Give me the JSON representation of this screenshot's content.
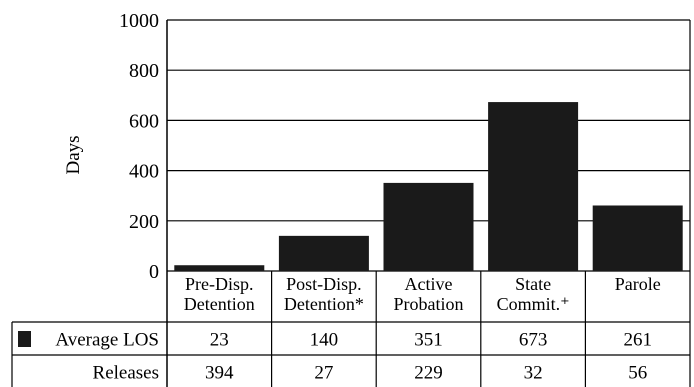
{
  "chart_data": {
    "type": "bar",
    "ylabel": "Days",
    "ylim": [
      0,
      1000
    ],
    "yticks": [
      0,
      200,
      400,
      600,
      800,
      1000
    ],
    "grid": true,
    "categories": [
      [
        "Pre-Disp.",
        "Detention"
      ],
      [
        "Post-Disp.",
        "Detention*"
      ],
      [
        "Active",
        "Probation"
      ],
      [
        "State",
        "Commit.⁺"
      ],
      [
        "Parole"
      ]
    ],
    "series": [
      {
        "name": "Average LOS",
        "values": [
          23,
          140,
          351,
          673,
          261
        ],
        "color": "#1a1a1a"
      }
    ],
    "table_rows": [
      {
        "label": "Average LOS",
        "values": [
          "23",
          "140",
          "351",
          "673",
          "261"
        ],
        "legend_swatch": true
      },
      {
        "label": "Releases",
        "values": [
          "394",
          "27",
          "229",
          "32",
          "56"
        ],
        "legend_swatch": false
      }
    ]
  }
}
